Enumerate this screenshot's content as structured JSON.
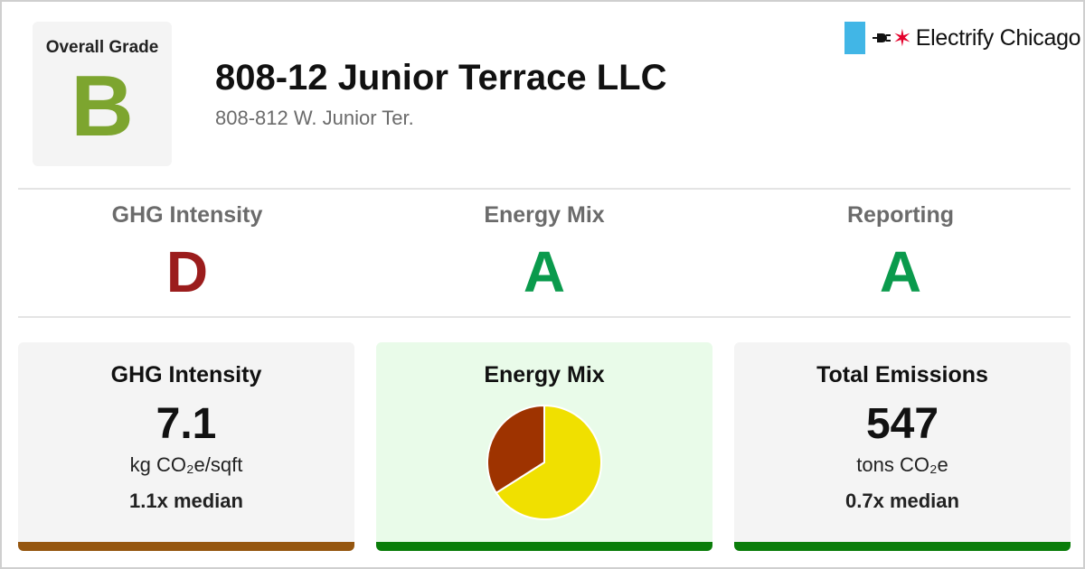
{
  "header": {
    "overall_grade_label": "Overall Grade",
    "overall_grade": "B",
    "overall_grade_color": "#7da52f",
    "building_name": "808-12 Junior Terrace LLC",
    "address": "808-812 W. Junior Ter."
  },
  "logo": {
    "text": "Electrify Chicago",
    "bar_color": "#41b6e6",
    "star_color": "#e4002b",
    "icons": [
      "plug-icon",
      "star-icon"
    ]
  },
  "subgrades": [
    {
      "label": "GHG Intensity",
      "grade": "D",
      "color": "#9b1c1c"
    },
    {
      "label": "Energy Mix",
      "grade": "A",
      "color": "#0a9a4c"
    },
    {
      "label": "Reporting",
      "grade": "A",
      "color": "#0a9a4c"
    }
  ],
  "cards": {
    "ghg": {
      "title": "GHG Intensity",
      "value": "7.1",
      "unit": "kg CO₂e/sqft",
      "median": "1.1x median",
      "bar_color": "#95560f"
    },
    "energy_mix": {
      "title": "Energy Mix",
      "background": "#e9fbe9",
      "bar_color": "#0a7d0a"
    },
    "emissions": {
      "title": "Total Emissions",
      "value": "547",
      "unit": "tons CO₂e",
      "median": "0.7x median",
      "bar_color": "#0a7d0a"
    }
  },
  "chart_data": {
    "type": "pie",
    "slices": [
      {
        "value": 66,
        "color": "#f0e000"
      },
      {
        "value": 34,
        "color": "#9e3300"
      }
    ],
    "start_angle_deg": 0,
    "direction": "clockwise"
  }
}
